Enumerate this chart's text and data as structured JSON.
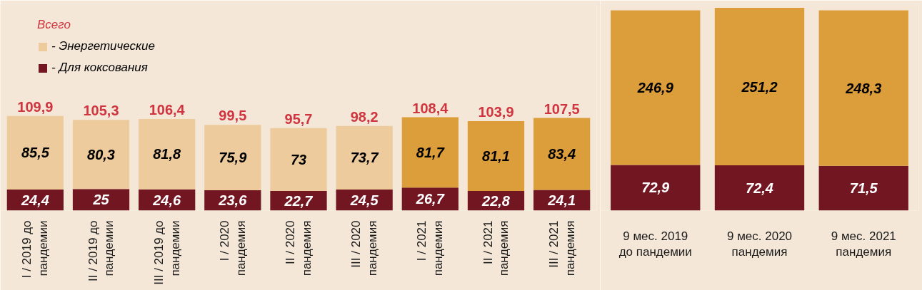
{
  "chart_data": [
    {
      "type": "bar",
      "stacked": true,
      "legend": "top left",
      "legend_title": "Всего",
      "tick_labels": "x",
      "ylim": [
        0,
        240
      ],
      "categories": [
        "I / 2019 до пандемии",
        "II / 2019 до пандемии",
        "III / 2019 до пандемии",
        "I / 2020 пандемия",
        "II / 2020 пандемия",
        "III / 2020 пандемия",
        "I / 2021 пандемия",
        "II / 2021 пандемия",
        "III / 2021 пандемия"
      ],
      "series": [
        {
          "name": "- Для коксования",
          "color": "#721722",
          "values": [
            24.4,
            25,
            24.6,
            23.6,
            22.7,
            24.5,
            26.7,
            22.8,
            24.1
          ],
          "value_labels": [
            "24,4",
            "25",
            "24,6",
            "23,6",
            "22,7",
            "24,5",
            "26,7",
            "22,8",
            "24,1"
          ]
        },
        {
          "name": "- Энергетические",
          "color": "#eecb9c",
          "colors": [
            "#eecb9c",
            "#eecb9c",
            "#eecb9c",
            "#eecb9c",
            "#eecb9c",
            "#eecb9c",
            "#dc9d3b",
            "#dc9d3b",
            "#dc9d3b"
          ],
          "values": [
            85.5,
            80.3,
            81.8,
            75.9,
            73,
            73.7,
            81.7,
            81.1,
            83.4
          ],
          "value_labels": [
            "85,5",
            "80,3",
            "81,8",
            "75,9",
            "73",
            "73,7",
            "81,7",
            "81,1",
            "83,4"
          ]
        }
      ],
      "totals": [
        "109,9",
        "105,3",
        "106,4",
        "99,5",
        "95,7",
        "98,2",
        "108,4",
        "103,9",
        "107,5"
      ]
    },
    {
      "type": "bar",
      "stacked": true,
      "tick_labels": "x",
      "ylim": [
        0,
        330
      ],
      "categories": [
        "9 мес. 2019 до пандемии",
        "9 мес. 2020 пандемия",
        "9 мес. 2021 пандемия"
      ],
      "series": [
        {
          "color": "#721722",
          "values": [
            72.9,
            72.4,
            71.5
          ],
          "value_labels": [
            "72,9",
            "72,4",
            "71,5"
          ]
        },
        {
          "color": "#dc9d3b",
          "values": [
            246.9,
            251.2,
            248.3
          ],
          "value_labels": [
            "246,9",
            "251,2",
            "248,3"
          ]
        }
      ]
    }
  ]
}
